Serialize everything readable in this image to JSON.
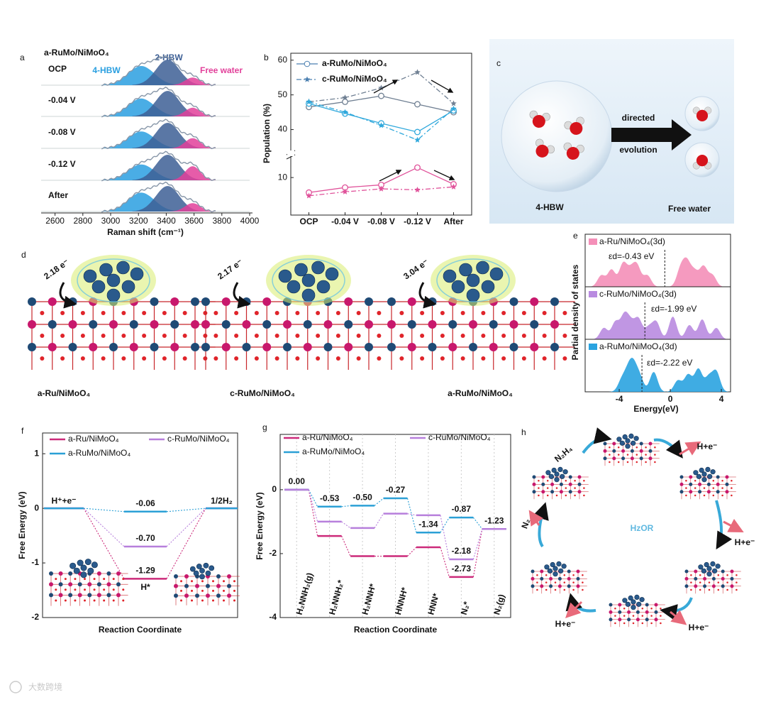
{
  "panel_labels": [
    "a",
    "b",
    "c",
    "d",
    "e",
    "f",
    "g",
    "h"
  ],
  "chart_data": [
    {
      "type": "spectra",
      "title": "a-RuMo/NiMoO₄",
      "xlabel": "Raman shift (cm⁻¹)",
      "xlim": [
        2500,
        4000
      ],
      "xticks": [
        2600,
        2800,
        3000,
        3200,
        3400,
        3600,
        3800,
        4000
      ],
      "rows": [
        "OCP",
        "-0.04 V",
        "-0.08 V",
        "-0.12 V",
        "After"
      ],
      "series": [
        {
          "name": "4-HBW",
          "color": "#2a9fe0",
          "center": 3220,
          "values": [
            0.75,
            0.7,
            0.66,
            0.62,
            0.74
          ]
        },
        {
          "name": "2-HBW",
          "color": "#3d5f95",
          "center": 3410,
          "values": [
            1,
            1,
            1,
            1,
            1
          ]
        },
        {
          "name": "Free water",
          "color": "#e2409a",
          "center": 3590,
          "values": [
            0.3,
            0.34,
            0.4,
            0.55,
            0.33
          ]
        }
      ]
    },
    {
      "type": "line",
      "ylabel": "Population (%)",
      "categories": [
        "OCP",
        "-0.04 V",
        "-0.08 V",
        "-0.12 V",
        "After"
      ],
      "ylim": [
        0,
        62
      ],
      "y_break": [
        16,
        35
      ],
      "yticks": [
        10,
        40,
        50,
        60
      ],
      "series": [
        {
          "name": "a-RuMo/NiMoO₄",
          "dash": "solid",
          "marker": "circle",
          "lines": [
            {
              "color": "#6f7f92",
              "values": [
                46.5,
                48,
                49.7,
                47.3,
                45
              ]
            },
            {
              "color": "#2fa8dc",
              "values": [
                47.5,
                44.6,
                41.8,
                39.3,
                45.5
              ]
            },
            {
              "color": "#e0529a",
              "values": [
                5.5,
                7,
                7.8,
                13,
                8
              ]
            }
          ]
        },
        {
          "name": "c-RuMo/NiMoO₄",
          "dash": "dashdot",
          "marker": "star",
          "lines": [
            {
              "color": "#6f7f92",
              "values": [
                48,
                49.2,
                52,
                56.5,
                47.5
              ]
            },
            {
              "color": "#2fa8dc",
              "values": [
                48,
                45,
                41.2,
                37,
                46
              ]
            },
            {
              "color": "#e0529a",
              "values": [
                4.5,
                5.7,
                6.6,
                6.3,
                7.2
              ]
            }
          ]
        }
      ]
    },
    {
      "type": "pdos",
      "ylabel": "Partial density of states",
      "xlabel": "Energy(eV)",
      "xlim": [
        -6.67,
        4.72
      ],
      "xticks": [
        -4,
        0,
        4
      ],
      "panels": [
        {
          "name": "a-Ru/NiMoO₄(3d)",
          "color": "#f48fb8",
          "d_band_center": -0.43,
          "d_band_label": "εd=-0.43 eV",
          "peaks": [
            -5.4,
            -4.6,
            -3.7,
            -3.1,
            -2.6,
            -1.8,
            0.8,
            1.3,
            1.9,
            2.6,
            3.3
          ]
        },
        {
          "name": "c-RuMo/NiMoO₄(3d)",
          "color": "#b98be0",
          "d_band_center": -1.99,
          "d_band_label": "εd=-1.99 eV",
          "peaks": [
            -5.2,
            -4.3,
            -3.6,
            -3.1,
            -2.5,
            -1.7,
            -1.1,
            0.2,
            1.5,
            2.5,
            3.6
          ]
        },
        {
          "name": "a-RuMo/NiMoO₄(3d)",
          "color": "#2aa3e0",
          "d_band_center": -2.22,
          "d_band_label": "εd=-2.22 eV",
          "peaks": [
            -3.8,
            -3.3,
            -2.9,
            -2.4,
            -1.3,
            0.6,
            1.4,
            2.2,
            3.0,
            3.6
          ]
        }
      ]
    },
    {
      "type": "energy-levels",
      "ylabel": "Free Energy (eV)",
      "xlabel": "Reaction Coordinate",
      "categories": [
        "H⁺+e⁻",
        "H*",
        "1/2H₂"
      ],
      "ylim": [
        -2,
        1.38
      ],
      "yticks": [
        -2,
        -1,
        0,
        1
      ],
      "series": [
        {
          "name": "a-Ru/NiMoO₄",
          "color": "#cc2a7a",
          "values": [
            0,
            -1.29,
            0
          ],
          "value_labels": [
            null,
            "-1.29",
            null
          ]
        },
        {
          "name": "c-RuMo/NiMoO₄",
          "color": "#b77fdc",
          "values": [
            0,
            -0.7,
            0
          ],
          "value_labels": [
            null,
            "-0.70",
            null
          ]
        },
        {
          "name": "a-RuMo/NiMoO₄",
          "color": "#2ba0d6",
          "values": [
            0,
            -0.06,
            0
          ],
          "value_labels": [
            null,
            "-0.06",
            null
          ]
        }
      ]
    },
    {
      "type": "energy-levels",
      "ylabel": "Free Energy (eV)",
      "xlabel": "Reaction Coordinate",
      "categories": [
        "H₂NNH₂(g)",
        "H₂NNH₂*",
        "H₂NNH*",
        "HNNH*",
        "HNN*",
        "N₂*",
        "N₂(g)"
      ],
      "ylim": [
        -4,
        1.73
      ],
      "yticks": [
        -4,
        -2,
        0
      ],
      "series": [
        {
          "name": "a-Ru/NiMoO₄",
          "color": "#cc2a7a",
          "values": [
            0,
            -1.45,
            -2.08,
            -2.08,
            -1.8,
            -2.73,
            -1.23
          ],
          "value_labels": [
            null,
            null,
            null,
            null,
            null,
            "-2.73",
            null
          ]
        },
        {
          "name": "a-RuMo/NiMoO₄",
          "color": "#2ba0d6",
          "values": [
            0,
            -0.53,
            -0.5,
            -0.27,
            -1.34,
            -0.87,
            -1.23
          ],
          "value_labels": [
            "0.00",
            "-0.53",
            "-0.50",
            "-0.27",
            "-1.34",
            "-0.87",
            "-1.23"
          ]
        },
        {
          "name": "c-RuMo/NiMoO₄",
          "color": "#b77fdc",
          "values": [
            0,
            -1.0,
            -1.2,
            -0.75,
            -0.8,
            -2.18,
            -1.23
          ],
          "value_labels": [
            null,
            null,
            null,
            null,
            null,
            "-2.18",
            null
          ]
        }
      ]
    }
  ],
  "diagram_c": {
    "arrow_label": [
      "directed",
      "evolution"
    ],
    "left": "4-HBW",
    "right": "Free water"
  },
  "structures_d": [
    {
      "name": "a-Ru/NiMoO₄",
      "charge": "2.18 e⁻"
    },
    {
      "name": "c-RuMo/NiMoO₄",
      "charge": "2.17 e⁻"
    },
    {
      "name": "a-RuMo/NiMoO₄",
      "charge": "3.04 e⁻"
    }
  ],
  "cycle_h": {
    "center": "HzOR",
    "reactant": "N₂H₄",
    "product": "N₂",
    "steps": [
      "H+e⁻",
      "H+e⁻",
      "H+e⁻",
      "H+e⁻"
    ]
  },
  "watermark": "大数跨境"
}
